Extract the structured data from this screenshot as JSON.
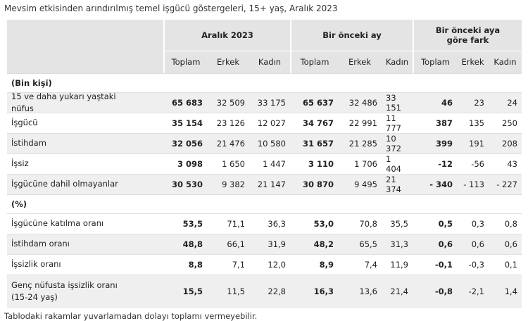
{
  "title": "Mevsim etkisinden arındırılmış temel işgücü göstergeleri, 15+ yaş, Aralık 2023",
  "groups": [
    "Aralık 2023",
    "Bir önceki ay",
    "Bir önceki aya göre fark"
  ],
  "columns": [
    "Toplam",
    "Erkek",
    "Kadın",
    "Toplam",
    "Erkek",
    "Kadın",
    "Toplam",
    "Erkek",
    "Kadın"
  ],
  "sections": [
    {
      "label": "(Bin kişi)",
      "rows": [
        {
          "label": "15 ve daha yukarı yaştaki nüfus",
          "values": [
            "65 683",
            "32 509",
            "33 175",
            "65 637",
            "32 486",
            "33 151",
            "46",
            "23",
            "24"
          ]
        },
        {
          "label": "İşgücü",
          "values": [
            "35 154",
            "23 126",
            "12 027",
            "34 767",
            "22 991",
            "11 777",
            "387",
            "135",
            "250"
          ]
        },
        {
          "label": "İstihdam",
          "values": [
            "32 056",
            "21 476",
            "10 580",
            "31 657",
            "21 285",
            "10 372",
            "399",
            "191",
            "208"
          ]
        },
        {
          "label": "İşsiz",
          "values": [
            "3 098",
            "1 650",
            "1 447",
            "3 110",
            "1 706",
            "1 404",
            "-12",
            "-56",
            "43"
          ]
        },
        {
          "label": "İşgücüne dahil olmayanlar",
          "values": [
            "30 530",
            "9 382",
            "21 147",
            "30 870",
            "9 495",
            "21 374",
            "- 340",
            "- 113",
            "- 227"
          ]
        }
      ]
    },
    {
      "label": "(%)",
      "rows": [
        {
          "label": "İşgücüne katılma oranı",
          "values": [
            "53,5",
            "71,1",
            "36,3",
            "53,0",
            "70,8",
            "35,5",
            "0,5",
            "0,3",
            "0,8"
          ]
        },
        {
          "label": "İstihdam oranı",
          "values": [
            "48,8",
            "66,1",
            "31,9",
            "48,2",
            "65,5",
            "31,3",
            "0,6",
            "0,6",
            "0,6"
          ]
        },
        {
          "label": "İşsizlik oranı",
          "values": [
            "8,8",
            "7,1",
            "12,0",
            "8,9",
            "7,4",
            "11,9",
            "-0,1",
            "-0,3",
            "0,1"
          ]
        },
        {
          "label": "Genç nüfusta işsizlik oranı (15-24 yaş)",
          "values": [
            "15,5",
            "11,5",
            "22,8",
            "16,3",
            "13,6",
            "21,4",
            "-0,8",
            "-2,1",
            "1,4"
          ]
        }
      ]
    }
  ],
  "footnote": "Tablodaki rakamlar yuvarlamadan dolayı toplamı vermeyebilir."
}
